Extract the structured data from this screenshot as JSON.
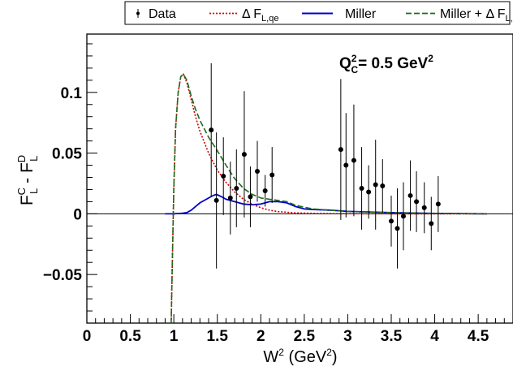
{
  "chart_data": {
    "type": "scatter",
    "xlim": [
      0,
      4.9
    ],
    "ylim": [
      -0.09,
      0.148
    ],
    "x_ticks": [
      "0",
      "0.5",
      "1",
      "1.5",
      "2",
      "2.5",
      "3",
      "3.5",
      "4",
      "4.5"
    ],
    "x_tick_values": [
      0,
      0.5,
      1,
      1.5,
      2,
      2.5,
      3,
      3.5,
      4,
      4.5
    ],
    "y_ticks": [
      "0.1",
      "0.05",
      "0",
      "−0.05"
    ],
    "y_tick_values": [
      0.1,
      0.05,
      0,
      -0.05
    ],
    "xlabel": {
      "base": "W",
      "sup": "2",
      "rest": " (GeV",
      "sup2": "2",
      "end": ")"
    },
    "ylabel": {
      "a": "F",
      "a_sup": "C",
      "a_sub": "L",
      "mid": " - ",
      "b": "F",
      "b_sup": "D",
      "b_sub": "L"
    },
    "annotation": {
      "q": "Q",
      "q_sup": "2",
      "q_sub": "C",
      "rest": "= 0.5 GeV",
      "rest_sup": "2"
    },
    "legend": {
      "placement": "top",
      "entries": [
        {
          "key": "data",
          "label": "Data",
          "sub": ""
        },
        {
          "key": "dfl",
          "label": "Δ F",
          "sub": "L,qe"
        },
        {
          "key": "miller",
          "label": "Miller",
          "sub": ""
        },
        {
          "key": "sum",
          "label": "Miller + Δ F",
          "sub": "L,qe"
        }
      ]
    },
    "colors": {
      "data": "#000000",
      "dfl": "#cc0000",
      "miller": "#0000cc",
      "sum": "#1e6b1e"
    },
    "series": [
      {
        "key": "data",
        "type": "scatter",
        "points": [
          {
            "x": 1.43,
            "y": 0.069,
            "err": 0.055
          },
          {
            "x": 1.49,
            "y": 0.011,
            "err": 0.056
          },
          {
            "x": 1.57,
            "y": 0.031,
            "err": 0.032
          },
          {
            "x": 1.65,
            "y": 0.013,
            "err": 0.03
          },
          {
            "x": 1.72,
            "y": 0.021,
            "err": 0.032
          },
          {
            "x": 1.81,
            "y": 0.049,
            "err": 0.052
          },
          {
            "x": 1.88,
            "y": 0.014,
            "err": 0.025
          },
          {
            "x": 1.96,
            "y": 0.035,
            "err": 0.025
          },
          {
            "x": 2.05,
            "y": 0.019,
            "err": 0.013
          },
          {
            "x": 2.13,
            "y": 0.032,
            "err": 0.023
          },
          {
            "x": 2.92,
            "y": 0.053,
            "err": 0.058
          },
          {
            "x": 2.98,
            "y": 0.04,
            "err": 0.043
          },
          {
            "x": 3.07,
            "y": 0.044,
            "err": 0.046
          },
          {
            "x": 3.16,
            "y": 0.021,
            "err": 0.034
          },
          {
            "x": 3.24,
            "y": 0.018,
            "err": 0.022
          },
          {
            "x": 3.32,
            "y": 0.024,
            "err": 0.037
          },
          {
            "x": 3.4,
            "y": 0.023,
            "err": 0.022
          },
          {
            "x": 3.5,
            "y": -0.006,
            "err": 0.021
          },
          {
            "x": 3.57,
            "y": -0.012,
            "err": 0.033
          },
          {
            "x": 3.64,
            "y": -0.002,
            "err": 0.028
          },
          {
            "x": 3.72,
            "y": 0.015,
            "err": 0.029
          },
          {
            "x": 3.79,
            "y": 0.01,
            "err": 0.025
          },
          {
            "x": 3.88,
            "y": 0.005,
            "err": 0.021
          },
          {
            "x": 3.96,
            "y": -0.008,
            "err": 0.022
          },
          {
            "x": 4.04,
            "y": 0.008,
            "err": 0.023
          }
        ]
      },
      {
        "key": "dfl",
        "type": "line",
        "x": [
          0.97,
          0.98,
          1.0,
          1.02,
          1.05,
          1.08,
          1.11,
          1.15,
          1.2,
          1.25,
          1.3,
          1.4,
          1.5,
          1.6,
          1.7,
          1.8,
          1.9,
          2.0,
          2.1,
          2.2,
          2.4,
          2.6,
          2.8,
          3.0,
          3.5,
          4.0,
          4.6
        ],
        "y": [
          -0.09,
          -0.05,
          0.02,
          0.07,
          0.1,
          0.113,
          0.115,
          0.108,
          0.094,
          0.08,
          0.068,
          0.05,
          0.036,
          0.026,
          0.018,
          0.012,
          0.008,
          0.005,
          0.003,
          0.0018,
          0.0008,
          0.0004,
          0.0002,
          0.0001,
          0.0,
          0.0,
          0.0
        ]
      },
      {
        "key": "miller",
        "type": "line",
        "x": [
          0.9,
          1.0,
          1.1,
          1.15,
          1.2,
          1.25,
          1.3,
          1.35,
          1.4,
          1.45,
          1.49,
          1.55,
          1.6,
          1.7,
          1.75,
          1.8,
          1.9,
          2.0,
          2.05,
          2.1,
          2.2,
          2.3,
          2.4,
          2.5,
          2.6,
          2.8,
          3.0,
          3.5,
          4.0,
          4.6
        ],
        "y": [
          0.0,
          0.0,
          0.0005,
          0.001,
          0.003,
          0.006,
          0.009,
          0.011,
          0.013,
          0.015,
          0.016,
          0.014,
          0.012,
          0.01,
          0.009,
          0.008,
          0.0075,
          0.008,
          0.009,
          0.01,
          0.01,
          0.009,
          0.006,
          0.004,
          0.0035,
          0.003,
          0.002,
          0.001,
          0.0003,
          0.0
        ]
      },
      {
        "key": "sum",
        "type": "line",
        "x": [
          0.97,
          0.98,
          1.0,
          1.02,
          1.05,
          1.08,
          1.11,
          1.15,
          1.2,
          1.25,
          1.3,
          1.4,
          1.5,
          1.6,
          1.7,
          1.8,
          1.9,
          2.0,
          2.1,
          2.2,
          2.3,
          2.4,
          2.6,
          2.8,
          3.0,
          3.5,
          4.0,
          4.6
        ],
        "y": [
          -0.09,
          -0.05,
          0.02,
          0.07,
          0.1,
          0.113,
          0.115,
          0.11,
          0.097,
          0.086,
          0.077,
          0.063,
          0.052,
          0.04,
          0.029,
          0.021,
          0.016,
          0.013,
          0.012,
          0.011,
          0.01,
          0.007,
          0.004,
          0.003,
          0.002,
          0.001,
          0.0003,
          0.0
        ]
      }
    ]
  }
}
